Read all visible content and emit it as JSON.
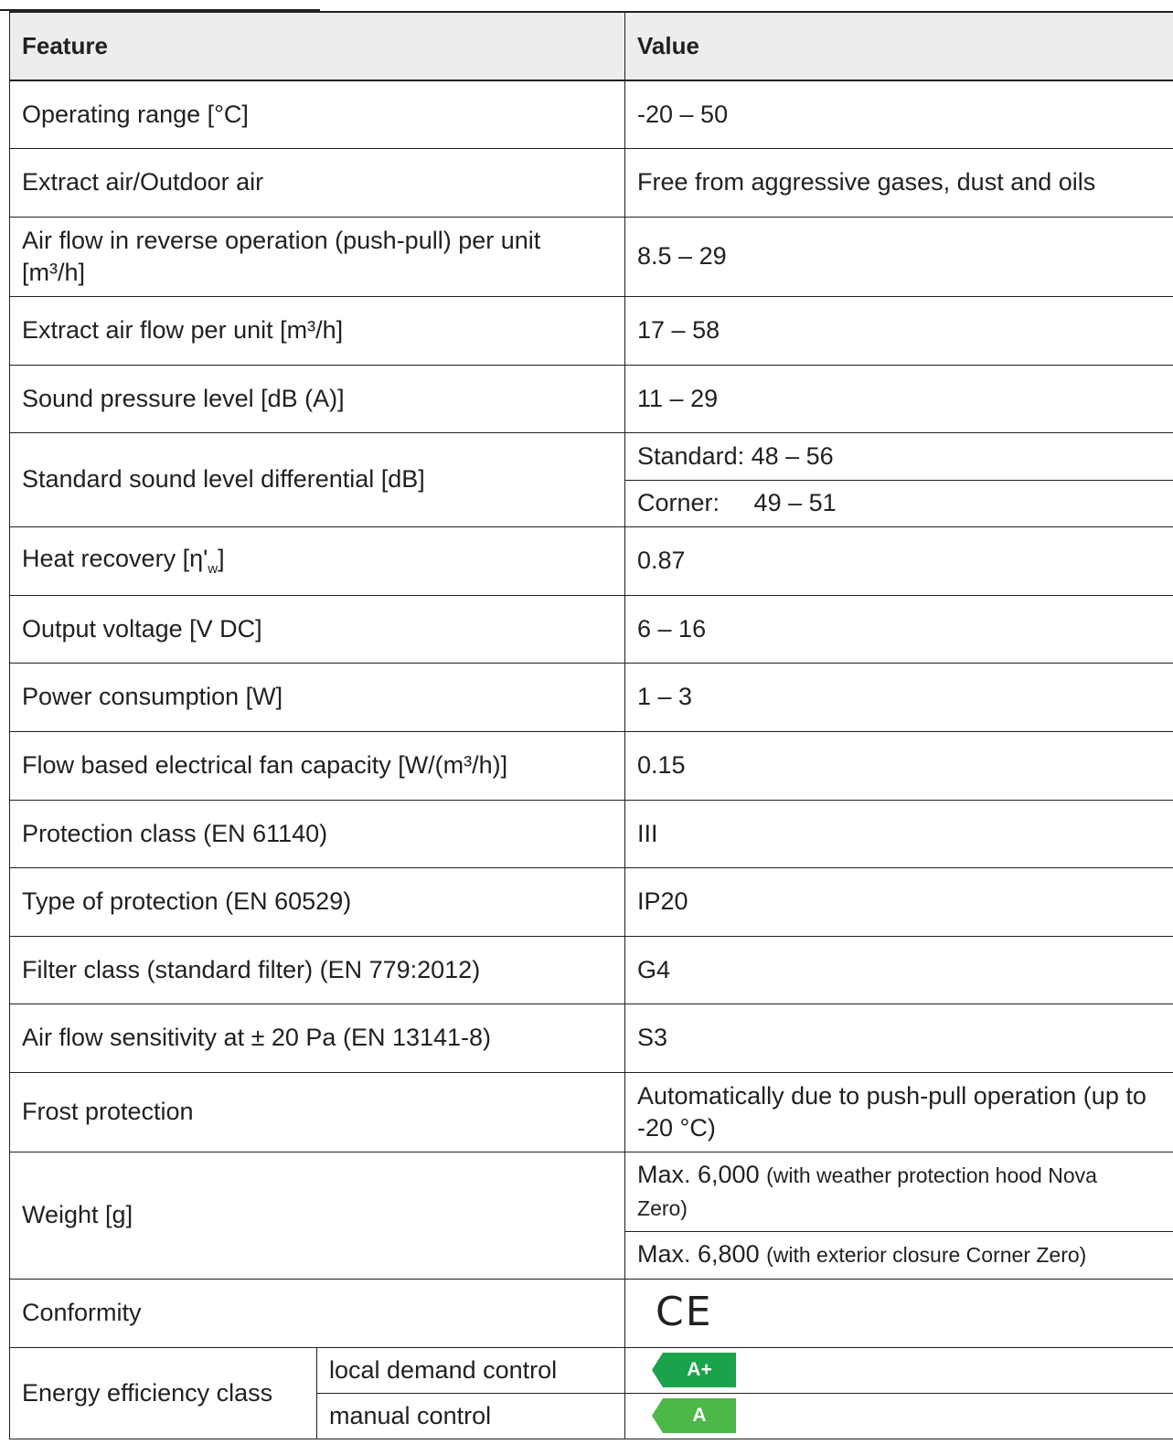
{
  "header": {
    "feature": "Feature",
    "value": "Value"
  },
  "rows": {
    "operating_range": {
      "label": "Operating range [°C]",
      "value": "-20 – 50"
    },
    "extract_outdoor": {
      "label": "Extract air/Outdoor air",
      "value": "Free from aggressive gases, dust and oils"
    },
    "air_flow_reverse": {
      "label": "Air flow in reverse operation (push-pull) per unit [m³/h]",
      "value": "8.5 – 29"
    },
    "extract_flow": {
      "label": "Extract air flow per unit [m³/h]",
      "value": "17 – 58"
    },
    "sound_pressure": {
      "label": "Sound pressure level [dB (A)]",
      "value": "11 – 29"
    },
    "sound_diff": {
      "label": "Standard sound level differential [dB]",
      "value_standard": "Standard: 48 – 56",
      "value_corner": "Corner:     49 – 51"
    },
    "heat_recovery": {
      "label_main": "Heat recovery [η'",
      "label_sub": "w",
      "label_end": "]",
      "value": "0.87"
    },
    "output_voltage": {
      "label": "Output voltage [V DC]",
      "value": "6 – 16"
    },
    "power": {
      "label": "Power consumption [W]",
      "value": "1 – 3"
    },
    "fan_capacity": {
      "label": "Flow based electrical fan capacity [W/(m³/h)]",
      "value": "0.15"
    },
    "protection_class": {
      "label": "Protection class (EN 61140)",
      "value": "III"
    },
    "type_protection": {
      "label": "Type of protection (EN 60529)",
      "value": "IP20"
    },
    "filter_class": {
      "label": "Filter class (standard filter) (EN 779:2012)",
      "value": "G4"
    },
    "sensitivity": {
      "label": "Air flow sensitivity at ± 20 Pa (EN 13141-8)",
      "value": "S3"
    },
    "frost": {
      "label": "Frost protection",
      "value": "Automatically due to push-pull operation (up to -20 °C)"
    },
    "weight": {
      "label": "Weight [g]",
      "value1_main": "Max. 6,000",
      "value1_note": "(with weather protection hood Nova Zero)",
      "value2_main": "Max. 6,800",
      "value2_note": "(with exterior closure Corner Zero)"
    },
    "conformity": {
      "label": "Conformity",
      "mark": "CE"
    },
    "energy": {
      "label": "Energy efficiency class",
      "local_label": "local demand control",
      "local_class": "A+",
      "manual_label": "manual control",
      "manual_class": "A"
    }
  },
  "colors": {
    "energy_a_plus": "#1aa34a",
    "energy_a": "#4cb848",
    "header_bg": "#ededed",
    "border": "#231f20"
  }
}
